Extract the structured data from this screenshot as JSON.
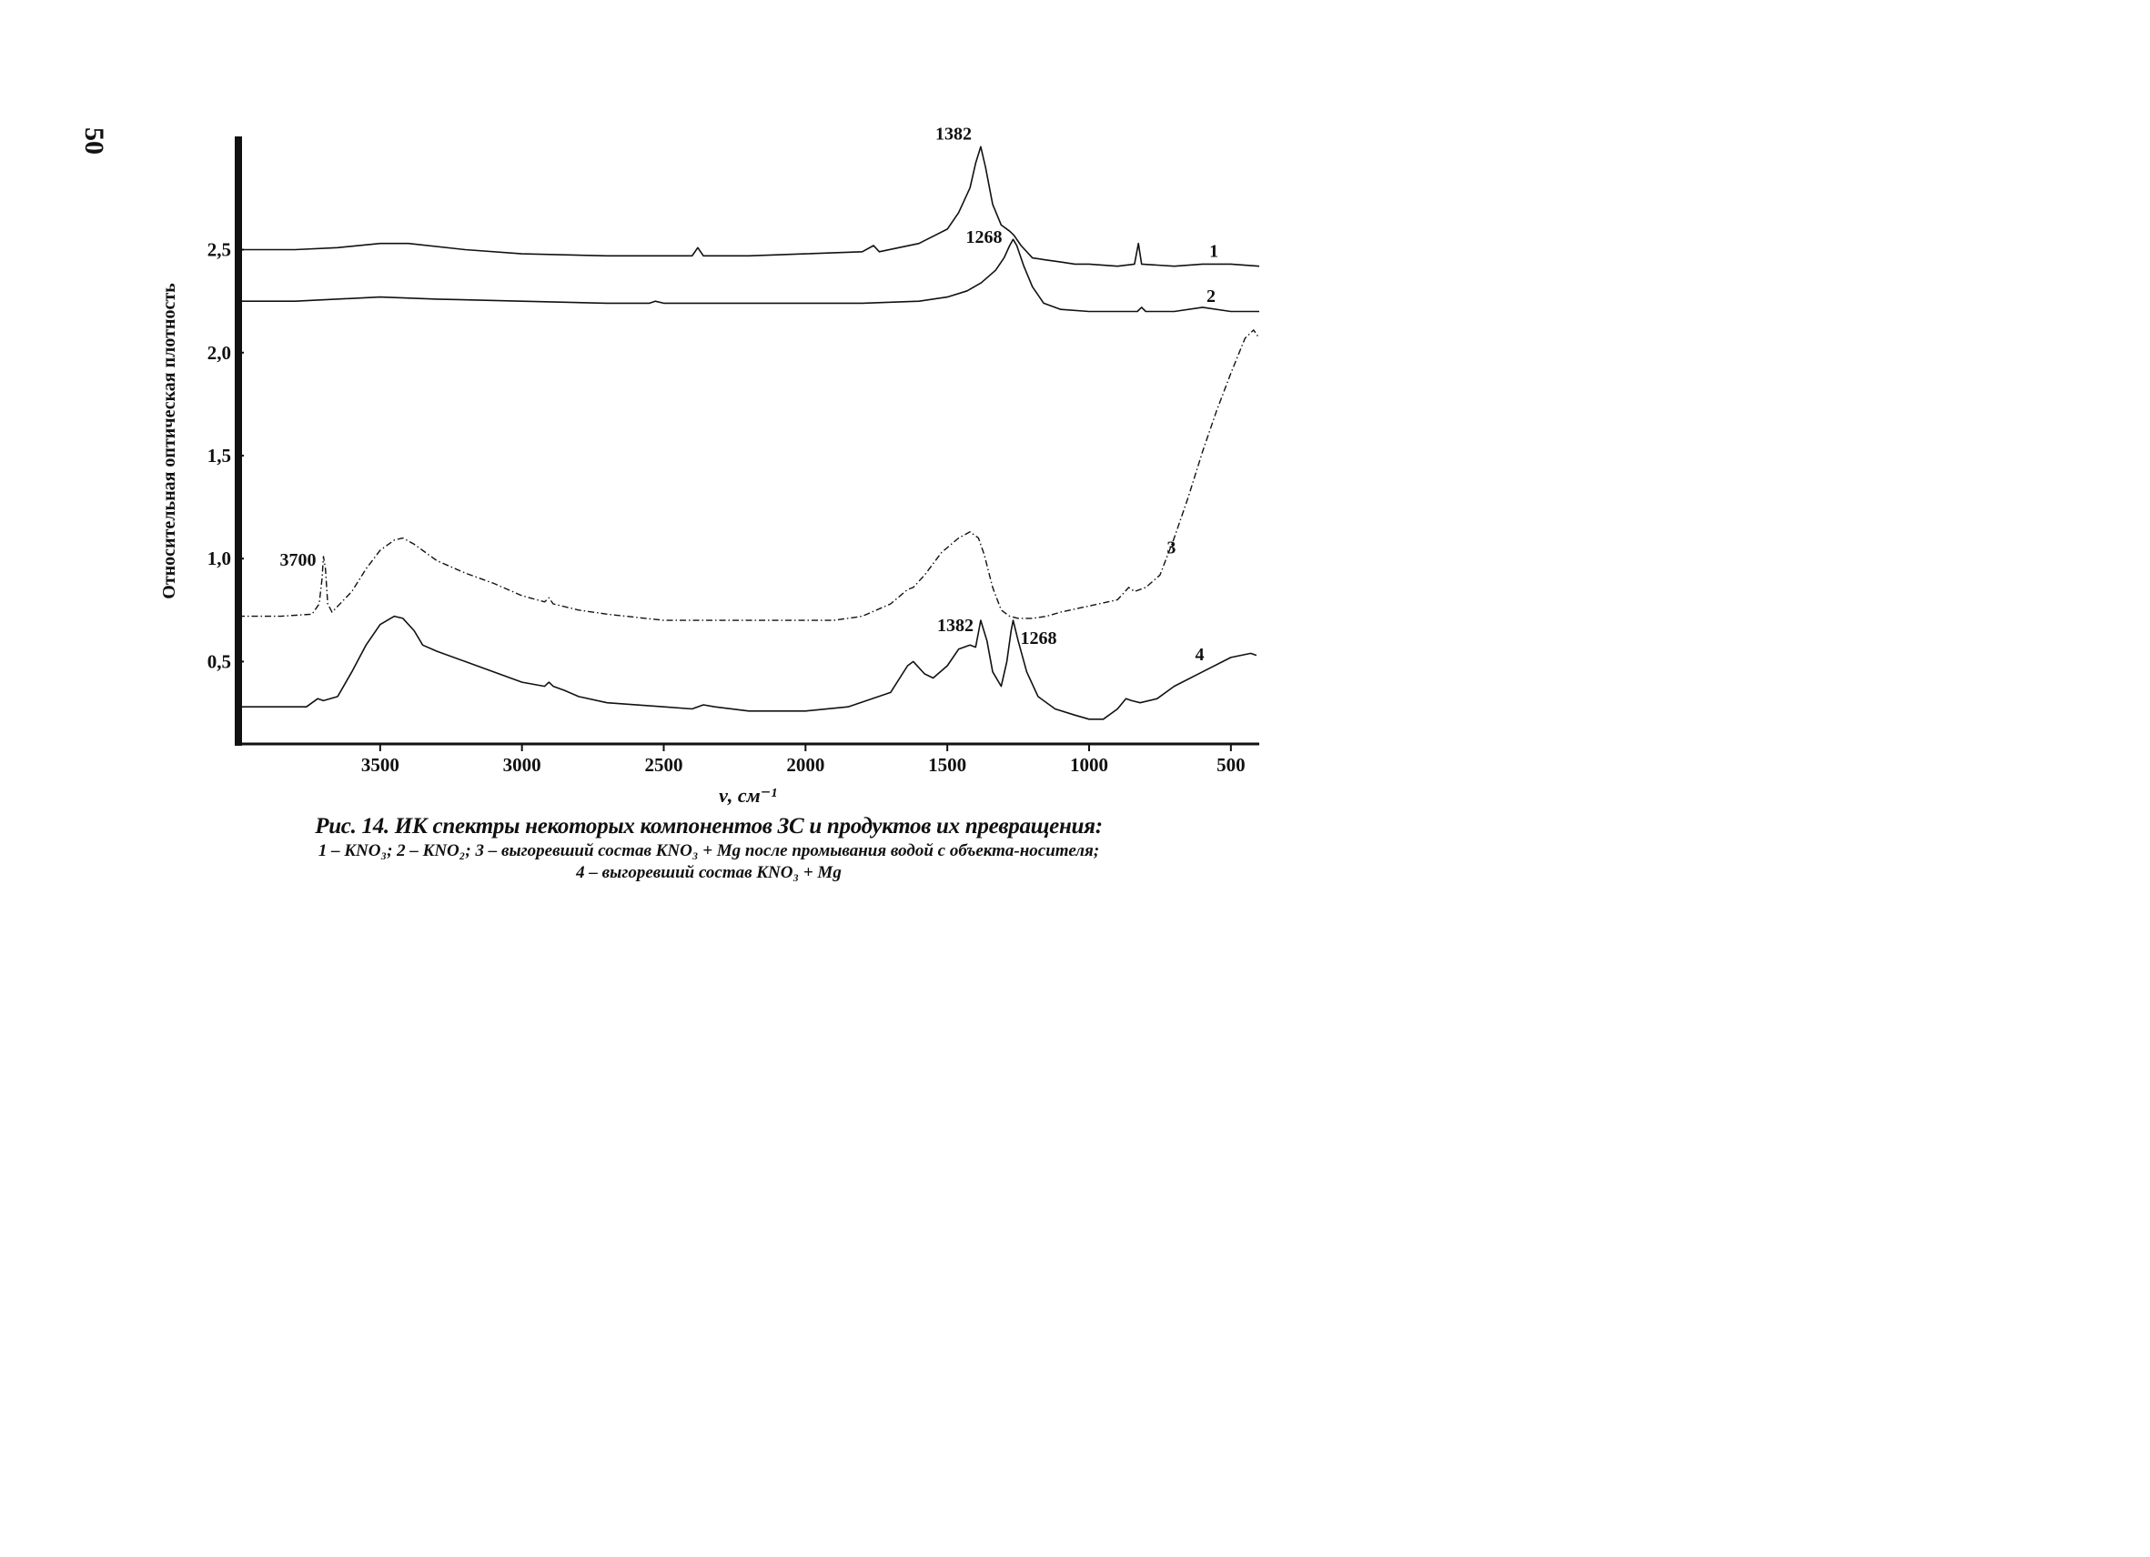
{
  "page_number": "50",
  "caption": {
    "title": "Рис. 14. ИК спектры некоторых компонентов ЗС и продуктов их превращения:",
    "line1": "1 – KNO₃; 2 – KNO₂; 3 – выгоревший состав KNO₃ + Mg после промывания водой с объекта-носителя;",
    "line2": "4 – выгоревший состав KNO₃ + Mg"
  },
  "chart_data": {
    "type": "line",
    "title": "",
    "xlabel": "ν, см⁻¹",
    "ylabel": "Относительная оптическая плотность",
    "xlim": [
      4000,
      400
    ],
    "ylim": [
      0.1,
      3.05
    ],
    "x_reversed": true,
    "grid": false,
    "xticks": [
      3500,
      3000,
      2500,
      2000,
      1500,
      1000,
      500
    ],
    "xtick_labels": [
      "3500",
      "3000",
      "2500",
      "2000",
      "1500",
      "1000",
      "500"
    ],
    "yticks": [
      0.5,
      1.0,
      1.5,
      2.0,
      2.5
    ],
    "ytick_labels": [
      "0,5",
      "1,0",
      "1,5",
      "2,0",
      "2,5"
    ],
    "series": [
      {
        "name": "1",
        "style": "solid",
        "points": [
          [
            4000,
            2.5
          ],
          [
            3800,
            2.5
          ],
          [
            3650,
            2.51
          ],
          [
            3500,
            2.53
          ],
          [
            3400,
            2.53
          ],
          [
            3200,
            2.5
          ],
          [
            3000,
            2.48
          ],
          [
            2700,
            2.47
          ],
          [
            2400,
            2.47
          ],
          [
            2380,
            2.51
          ],
          [
            2360,
            2.47
          ],
          [
            2200,
            2.47
          ],
          [
            2000,
            2.48
          ],
          [
            1800,
            2.49
          ],
          [
            1760,
            2.52
          ],
          [
            1740,
            2.49
          ],
          [
            1600,
            2.53
          ],
          [
            1500,
            2.6
          ],
          [
            1460,
            2.68
          ],
          [
            1420,
            2.8
          ],
          [
            1400,
            2.92
          ],
          [
            1382,
            3.0
          ],
          [
            1365,
            2.9
          ],
          [
            1340,
            2.72
          ],
          [
            1310,
            2.62
          ],
          [
            1280,
            2.59
          ],
          [
            1265,
            2.57
          ],
          [
            1240,
            2.52
          ],
          [
            1200,
            2.46
          ],
          [
            1150,
            2.45
          ],
          [
            1100,
            2.44
          ],
          [
            1050,
            2.43
          ],
          [
            1000,
            2.43
          ],
          [
            900,
            2.42
          ],
          [
            840,
            2.43
          ],
          [
            826,
            2.53
          ],
          [
            815,
            2.43
          ],
          [
            700,
            2.42
          ],
          [
            600,
            2.43
          ],
          [
            500,
            2.43
          ],
          [
            400,
            2.42
          ]
        ]
      },
      {
        "name": "2",
        "style": "solid",
        "points": [
          [
            4000,
            2.25
          ],
          [
            3800,
            2.25
          ],
          [
            3500,
            2.27
          ],
          [
            3300,
            2.26
          ],
          [
            3000,
            2.25
          ],
          [
            2700,
            2.24
          ],
          [
            2550,
            2.24
          ],
          [
            2530,
            2.25
          ],
          [
            2500,
            2.24
          ],
          [
            2200,
            2.24
          ],
          [
            2000,
            2.24
          ],
          [
            1800,
            2.24
          ],
          [
            1600,
            2.25
          ],
          [
            1500,
            2.27
          ],
          [
            1430,
            2.3
          ],
          [
            1380,
            2.34
          ],
          [
            1330,
            2.4
          ],
          [
            1300,
            2.46
          ],
          [
            1280,
            2.52
          ],
          [
            1268,
            2.55
          ],
          [
            1255,
            2.52
          ],
          [
            1230,
            2.42
          ],
          [
            1200,
            2.32
          ],
          [
            1160,
            2.24
          ],
          [
            1100,
            2.21
          ],
          [
            1000,
            2.2
          ],
          [
            830,
            2.2
          ],
          [
            815,
            2.22
          ],
          [
            800,
            2.2
          ],
          [
            700,
            2.2
          ],
          [
            600,
            2.22
          ],
          [
            500,
            2.2
          ],
          [
            400,
            2.2
          ]
        ]
      },
      {
        "name": "3",
        "style": "dash-dot",
        "points": [
          [
            4000,
            0.72
          ],
          [
            3850,
            0.72
          ],
          [
            3740,
            0.73
          ],
          [
            3715,
            0.78
          ],
          [
            3705,
            0.9
          ],
          [
            3700,
            1.01
          ],
          [
            3693,
            0.95
          ],
          [
            3685,
            0.78
          ],
          [
            3670,
            0.74
          ],
          [
            3600,
            0.84
          ],
          [
            3550,
            0.95
          ],
          [
            3500,
            1.04
          ],
          [
            3450,
            1.09
          ],
          [
            3420,
            1.1
          ],
          [
            3380,
            1.07
          ],
          [
            3300,
            0.99
          ],
          [
            3200,
            0.93
          ],
          [
            3100,
            0.88
          ],
          [
            3000,
            0.82
          ],
          [
            2920,
            0.79
          ],
          [
            2905,
            0.81
          ],
          [
            2890,
            0.78
          ],
          [
            2800,
            0.75
          ],
          [
            2700,
            0.73
          ],
          [
            2500,
            0.7
          ],
          [
            2300,
            0.7
          ],
          [
            2100,
            0.7
          ],
          [
            1900,
            0.7
          ],
          [
            1800,
            0.72
          ],
          [
            1700,
            0.78
          ],
          [
            1640,
            0.85
          ],
          [
            1620,
            0.86
          ],
          [
            1580,
            0.92
          ],
          [
            1520,
            1.03
          ],
          [
            1460,
            1.1
          ],
          [
            1420,
            1.13
          ],
          [
            1390,
            1.1
          ],
          [
            1370,
            1.02
          ],
          [
            1340,
            0.86
          ],
          [
            1310,
            0.75
          ],
          [
            1280,
            0.72
          ],
          [
            1250,
            0.71
          ],
          [
            1200,
            0.71
          ],
          [
            1150,
            0.72
          ],
          [
            1100,
            0.74
          ],
          [
            1000,
            0.77
          ],
          [
            900,
            0.8
          ],
          [
            860,
            0.86
          ],
          [
            840,
            0.84
          ],
          [
            800,
            0.86
          ],
          [
            750,
            0.92
          ],
          [
            700,
            1.1
          ],
          [
            650,
            1.3
          ],
          [
            600,
            1.52
          ],
          [
            550,
            1.72
          ],
          [
            500,
            1.9
          ],
          [
            450,
            2.07
          ],
          [
            420,
            2.11
          ],
          [
            400,
            2.07
          ]
        ]
      },
      {
        "name": "4",
        "style": "solid",
        "points": [
          [
            4000,
            0.28
          ],
          [
            3760,
            0.28
          ],
          [
            3740,
            0.3
          ],
          [
            3720,
            0.32
          ],
          [
            3700,
            0.31
          ],
          [
            3650,
            0.33
          ],
          [
            3600,
            0.45
          ],
          [
            3550,
            0.58
          ],
          [
            3500,
            0.68
          ],
          [
            3450,
            0.72
          ],
          [
            3420,
            0.71
          ],
          [
            3380,
            0.65
          ],
          [
            3350,
            0.58
          ],
          [
            3300,
            0.55
          ],
          [
            3200,
            0.5
          ],
          [
            3100,
            0.45
          ],
          [
            3000,
            0.4
          ],
          [
            2920,
            0.38
          ],
          [
            2905,
            0.4
          ],
          [
            2890,
            0.38
          ],
          [
            2850,
            0.36
          ],
          [
            2800,
            0.33
          ],
          [
            2700,
            0.3
          ],
          [
            2500,
            0.28
          ],
          [
            2400,
            0.27
          ],
          [
            2360,
            0.29
          ],
          [
            2320,
            0.28
          ],
          [
            2200,
            0.26
          ],
          [
            2000,
            0.26
          ],
          [
            1850,
            0.28
          ],
          [
            1700,
            0.35
          ],
          [
            1640,
            0.48
          ],
          [
            1620,
            0.5
          ],
          [
            1580,
            0.44
          ],
          [
            1550,
            0.42
          ],
          [
            1500,
            0.48
          ],
          [
            1460,
            0.56
          ],
          [
            1420,
            0.58
          ],
          [
            1400,
            0.57
          ],
          [
            1382,
            0.7
          ],
          [
            1360,
            0.6
          ],
          [
            1340,
            0.45
          ],
          [
            1310,
            0.38
          ],
          [
            1290,
            0.5
          ],
          [
            1275,
            0.65
          ],
          [
            1268,
            0.7
          ],
          [
            1250,
            0.6
          ],
          [
            1220,
            0.45
          ],
          [
            1180,
            0.33
          ],
          [
            1120,
            0.27
          ],
          [
            1050,
            0.24
          ],
          [
            1000,
            0.22
          ],
          [
            950,
            0.22
          ],
          [
            900,
            0.27
          ],
          [
            870,
            0.32
          ],
          [
            850,
            0.31
          ],
          [
            820,
            0.3
          ],
          [
            760,
            0.32
          ],
          [
            700,
            0.38
          ],
          [
            600,
            0.45
          ],
          [
            500,
            0.52
          ],
          [
            430,
            0.54
          ],
          [
            410,
            0.53
          ]
        ]
      }
    ],
    "annotations": [
      {
        "text": "1382",
        "series": "1",
        "x": 1382,
        "y": 3.0
      },
      {
        "text": "1268",
        "series": "2",
        "x": 1268,
        "y": 2.55
      },
      {
        "text": "3700",
        "series": "3",
        "x": 3700,
        "y": 1.01
      },
      {
        "text": "1382",
        "series": "4",
        "x": 1382,
        "y": 0.7
      },
      {
        "text": "1268",
        "series": "4",
        "x": 1268,
        "y": 0.7
      }
    ],
    "curve_labels": [
      {
        "text": "1",
        "series": "1",
        "x": 560,
        "y": 2.43
      },
      {
        "text": "2",
        "series": "2",
        "x": 570,
        "y": 2.21
      },
      {
        "text": "3",
        "series": "3",
        "x": 710,
        "y": 0.99
      },
      {
        "text": "4",
        "series": "4",
        "x": 610,
        "y": 0.47
      }
    ]
  }
}
